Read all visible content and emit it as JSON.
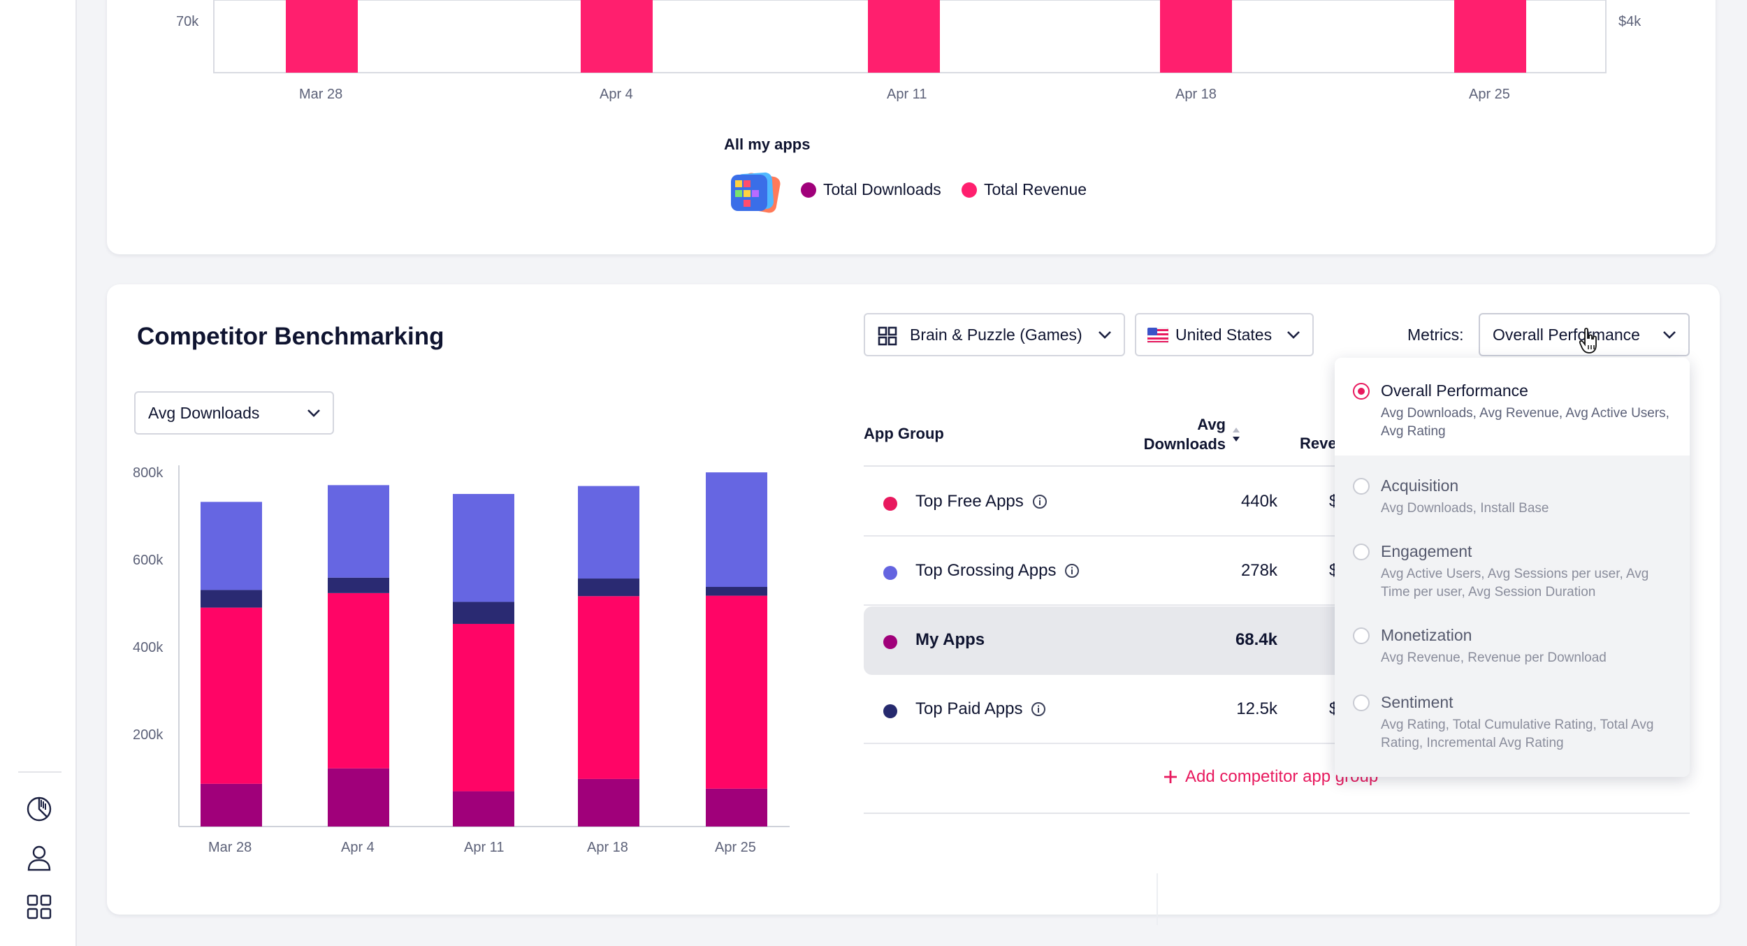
{
  "top_chart": {
    "y_tick_left": "70k",
    "y_tick_right": "$4k",
    "x_ticks": [
      "Mar 28",
      "Apr 4",
      "Apr 11",
      "Apr 18",
      "Apr 25"
    ],
    "legend_title": "All my apps",
    "legend_items": [
      {
        "label": "Total Downloads",
        "color": "#a0007a"
      },
      {
        "label": "Total Revenue",
        "color": "#ff1f6e"
      }
    ]
  },
  "benchmark": {
    "title": "Competitor Benchmarking",
    "metric_select": "Avg Downloads",
    "category_select": "Brain & Puzzle (Games)",
    "country_select": "United States",
    "metrics_label": "Metrics:",
    "metrics_select": "Overall Performance",
    "table": {
      "col_app_group": "App Group",
      "col_avg_downloads_line1": "Avg",
      "col_avg_downloads_line2": "Downloads",
      "col_revenue_partial": "Reve",
      "rows": [
        {
          "name": "Top Free Apps",
          "value": "440k",
          "rev_partial": "$",
          "color": "#e8195e",
          "info": true
        },
        {
          "name": "Top Grossing Apps",
          "value": "278k",
          "rev_partial": "$",
          "color": "#6464e0",
          "info": true
        },
        {
          "name": "My Apps",
          "value": "68.4k",
          "rev_partial": "",
          "color": "#a0007a",
          "info": false
        },
        {
          "name": "Top Paid Apps",
          "value": "12.5k",
          "rev_partial": "$",
          "color": "#262a6e",
          "info": true
        }
      ],
      "add_link": "Add competitor app group"
    },
    "metrics_options": [
      {
        "label": "Overall Performance",
        "desc": "Avg Downloads, Avg Revenue, Avg Active Users, Avg Rating",
        "selected": true
      },
      {
        "label": "Acquisition",
        "desc": "Avg Downloads, Install Base",
        "selected": false
      },
      {
        "label": "Engagement",
        "desc": "Avg Active Users, Avg Sessions per user, Avg Time per user, Avg Session Duration",
        "selected": false
      },
      {
        "label": "Monetization",
        "desc": "Avg Revenue, Revenue per Download",
        "selected": false
      },
      {
        "label": "Sentiment",
        "desc": "Avg Rating, Total Cumulative Rating, Total Avg Rating, Incremental Avg Rating",
        "selected": false
      }
    ]
  },
  "chart_data": {
    "type": "bar",
    "stacked": true,
    "categories": [
      "Mar 28",
      "Apr 4",
      "Apr 11",
      "Apr 18",
      "Apr 25"
    ],
    "y_ticks": [
      "800k",
      "600k",
      "400k",
      "200k"
    ],
    "ylim": [
      0,
      820000
    ],
    "series": [
      {
        "color": "#a0007a",
        "values": [
          97000,
          132000,
          80000,
          108000,
          86000
        ]
      },
      {
        "color": "#ff0566",
        "values": [
          400000,
          398000,
          380000,
          415000,
          438000
        ]
      },
      {
        "color": "#2a2a72",
        "values": [
          40000,
          35000,
          50000,
          40000,
          20000
        ]
      },
      {
        "color": "#6666e2",
        "values": [
          200000,
          210000,
          245000,
          210000,
          260000
        ]
      }
    ]
  }
}
